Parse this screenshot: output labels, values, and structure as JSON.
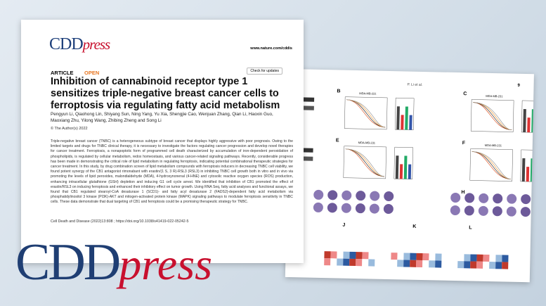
{
  "front_page": {
    "logo": {
      "cdd": "CDD",
      "press": "press"
    },
    "url": "www.nature.com/cddis",
    "article_type": "ARTICLE",
    "access": "OPEN",
    "check": "Check for updates",
    "title": "Inhibition of cannabinoid receptor type 1 sensitizes triple-negative breast cancer cells to ferroptosis via regulating fatty acid metabolism",
    "authors": "Pengyun Li, Qiaohong Lin, Shiyang Sun, Ning Yang, Yu Xia, Shengjie Cao, Wenjuan Zhang, Qian Li, Haoxin Guo, Maoxiang Zhu, Yilong Wang, Zhibing Zheng and Song Li",
    "copyright": "© The Author(s) 2022",
    "abstract": "Triple-negative breast cancer (TNBC) is a heterogeneous subtype of breast cancer that displays highly aggressive with poor prognosis. Owing to the limited targets and drugs for TNBC clinical therapy, it is necessary to investigate the factors regulating cancer progression and develop novel therapies for cancer treatment. Ferroptosis, a nonapoptotic form of programmed cell death characterized by accumulation of iron-dependent peroxidation of phospholipids, is regulated by cellular metabolism, redox homeostasis, and various cancer-related signaling pathways. Recently, considerable progress has been made in demonstrating the critical role of lipid metabolism in regulating ferroptosis, indicating potential combinational therapeutic strategies for cancer treatment. In this study, by drug combination screen of lipid metabolism compounds with ferroptosis inducers in decreasing TNBC cell viability, we found potent synergy of the CB1 antagonist rimonabant with erastin/(1 S, 3 R)-RSL3 (RSL3) in inhibiting TNBC cell growth both in vitro and in vivo via promoting the levels of lipid peroxides, malondialdehyde (MDA), 4-hydroxynonenal (4-HNE) and cytosolic reactive oxygen species (ROS) production, enhancing intracellular glutathione (GSH) depletion and inducing G1 cell cycle arrest. We identified that inhibition of CB1 promoted the effect of erastin/RSL3 on inducing ferroptosis and enhanced their inhibitory effect on tumor growth. Using RNA Seq, fatty acid analyses and functional assays, we found that CB1 regulated stearoyl-CoA desaturase 1 (SCD1)- and fatty acyl desaturase 2 (FADS2)-dependent fatty acid metabolism via phosphatidylinositol 3 kinase (PI3K)-AKT and mitogen-activated protein kinase (MAPK) signaling pathways to modulate ferroptosis sensitivity in TNBC cells. These data demonstrate that dual targeting of CB1 and ferroptosis could be a promising therapeutic strategy for TNBC.",
    "citation": "Cell Death and Disease (2022)13:808 ; https://doi.org/10.1038/s41419-022-05242-5"
  },
  "back_page": {
    "running_head": "P. Li et al.",
    "page_number": "9",
    "panels": [
      "B",
      "C",
      "E",
      "F",
      "H",
      "J",
      "K",
      "L"
    ],
    "cell_line": "MDA-MB-231"
  },
  "big_logo": {
    "cdd": "CDD",
    "press": "press"
  }
}
